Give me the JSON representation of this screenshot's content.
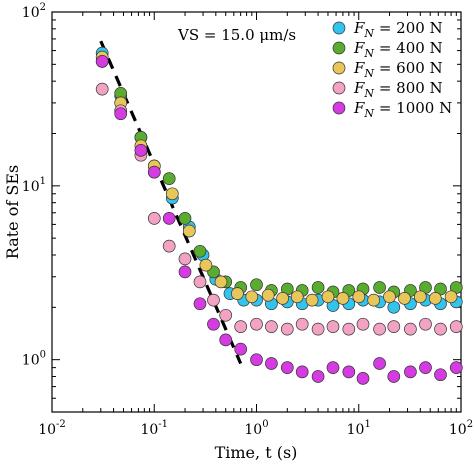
{
  "chart_data": {
    "type": "scatter",
    "title": "",
    "xlabel": "Time, t (s)",
    "ylabel": "Rate of SEs",
    "xscale": "log",
    "yscale": "log",
    "xlim": [
      0.01,
      100
    ],
    "ylim": [
      0.5,
      100
    ],
    "x_tick_labels": [
      "10-2",
      "10-1",
      "100",
      "101",
      "102"
    ],
    "y_tick_labels": [
      "100",
      "101",
      "102"
    ],
    "annotation": "VS = 15.0 μm/s",
    "legend_position": "top-right",
    "grid": false,
    "reference_line": {
      "style": "dashed",
      "color": "#000000",
      "points": [
        [
          0.03,
          68
        ],
        [
          0.7,
          0.95
        ]
      ]
    },
    "series": [
      {
        "name": "FN = 200 N",
        "color": "#33c4ee",
        "x": [
          0.031,
          0.047,
          0.074,
          0.1,
          0.15,
          0.22,
          0.3,
          0.4,
          0.55,
          0.75,
          1.0,
          1.4,
          2.0,
          2.8,
          4.0,
          5.6,
          8.0,
          11,
          16,
          22,
          32,
          45,
          63,
          90
        ],
        "y": [
          58,
          33,
          19,
          13,
          8.5,
          5.8,
          4.0,
          2.9,
          2.4,
          2.2,
          2.2,
          2.1,
          2.15,
          2.1,
          2.2,
          2.05,
          2.1,
          2.2,
          2.15,
          2.0,
          2.1,
          2.2,
          2.1,
          2.15
        ]
      },
      {
        "name": "FN = 400 N",
        "color": "#5aac30",
        "x": [
          0.031,
          0.047,
          0.074,
          0.1,
          0.14,
          0.2,
          0.28,
          0.38,
          0.5,
          0.7,
          1.0,
          1.4,
          2.0,
          2.8,
          4.0,
          5.6,
          8.0,
          11,
          16,
          22,
          32,
          45,
          63,
          90
        ],
        "y": [
          52,
          34,
          19,
          12,
          11,
          6.5,
          4.2,
          3.2,
          2.8,
          2.6,
          2.7,
          2.5,
          2.55,
          2.5,
          2.6,
          2.45,
          2.5,
          2.55,
          2.6,
          2.45,
          2.5,
          2.6,
          2.55,
          2.6
        ]
      },
      {
        "name": "FN = 600 N",
        "color": "#e8c65a",
        "x": [
          0.031,
          0.047,
          0.074,
          0.1,
          0.15,
          0.22,
          0.32,
          0.45,
          0.65,
          0.9,
          1.3,
          1.8,
          2.5,
          3.5,
          5.0,
          7.0,
          10,
          14,
          20,
          28,
          40,
          56,
          80
        ],
        "y": [
          55,
          30,
          17,
          13,
          9.0,
          5.5,
          3.5,
          2.8,
          2.4,
          2.3,
          2.35,
          2.25,
          2.3,
          2.2,
          2.3,
          2.25,
          2.3,
          2.2,
          2.3,
          2.25,
          2.3,
          2.25,
          2.3
        ]
      },
      {
        "name": "FN = 800 N",
        "color": "#f2a2c2",
        "x": [
          0.031,
          0.047,
          0.074,
          0.1,
          0.14,
          0.2,
          0.28,
          0.38,
          0.5,
          0.7,
          1.0,
          1.4,
          2.0,
          2.8,
          4.0,
          5.6,
          8.0,
          11,
          16,
          22,
          32,
          45,
          63,
          90
        ],
        "y": [
          36,
          27,
          15,
          6.5,
          4.5,
          3.8,
          2.8,
          2.2,
          1.8,
          1.55,
          1.6,
          1.55,
          1.5,
          1.6,
          1.5,
          1.55,
          1.5,
          1.6,
          1.5,
          1.55,
          1.5,
          1.6,
          1.5,
          1.55
        ]
      },
      {
        "name": "FN = 1000 N",
        "color": "#d43be0",
        "x": [
          0.031,
          0.047,
          0.074,
          0.1,
          0.14,
          0.2,
          0.28,
          0.38,
          0.5,
          0.7,
          1.0,
          1.4,
          2.0,
          2.8,
          4.0,
          5.6,
          8.0,
          11,
          16,
          22,
          32,
          45,
          63,
          90
        ],
        "y": [
          52,
          26,
          16,
          12,
          6.5,
          3.2,
          2.1,
          1.6,
          1.3,
          1.15,
          1.0,
          0.95,
          0.9,
          0.85,
          0.8,
          0.9,
          0.85,
          0.78,
          0.95,
          0.8,
          0.85,
          0.9,
          0.82,
          0.9
        ]
      }
    ]
  }
}
